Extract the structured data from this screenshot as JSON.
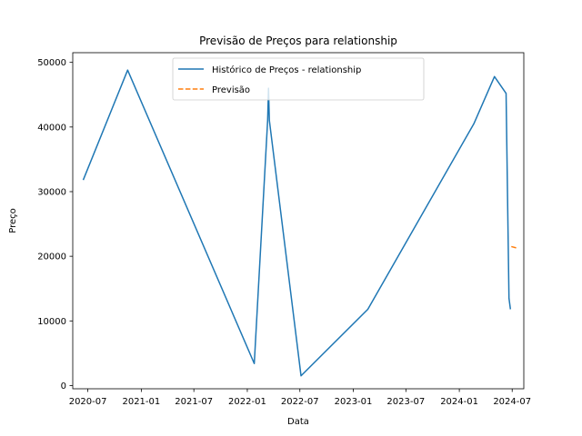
{
  "chart_data": {
    "type": "line",
    "title": "Previsão de Preços para relationship",
    "xlabel": "Data",
    "ylabel": "Preço",
    "x_axis_type": "date",
    "xlim": [
      "2020-05-10",
      "2024-08-10"
    ],
    "ylim": [
      -500,
      51500
    ],
    "x_ticks": [
      {
        "value": "2020-07-01",
        "label": "2020-07"
      },
      {
        "value": "2021-01-01",
        "label": "2021-01"
      },
      {
        "value": "2021-07-01",
        "label": "2021-07"
      },
      {
        "value": "2022-01-01",
        "label": "2022-01"
      },
      {
        "value": "2022-07-01",
        "label": "2022-07"
      },
      {
        "value": "2023-01-01",
        "label": "2023-01"
      },
      {
        "value": "2023-07-01",
        "label": "2023-07"
      },
      {
        "value": "2024-01-01",
        "label": "2024-01"
      },
      {
        "value": "2024-07-01",
        "label": "2024-07"
      }
    ],
    "y_ticks": [
      0,
      10000,
      20000,
      30000,
      40000,
      50000
    ],
    "grid": false,
    "legend_position": "top-center",
    "series": [
      {
        "name": "Histórico de Preços - relationship",
        "color": "#1f77b4",
        "style": "solid",
        "points": [
          {
            "x": "2020-06-15",
            "y": 31800
          },
          {
            "x": "2020-11-15",
            "y": 48800
          },
          {
            "x": "2022-01-25",
            "y": 3400
          },
          {
            "x": "2022-03-12",
            "y": 41000
          },
          {
            "x": "2022-03-15",
            "y": 46000
          },
          {
            "x": "2022-03-18",
            "y": 41000
          },
          {
            "x": "2022-07-05",
            "y": 1500
          },
          {
            "x": "2023-02-20",
            "y": 11800
          },
          {
            "x": "2024-02-20",
            "y": 40500
          },
          {
            "x": "2024-05-01",
            "y": 47800
          },
          {
            "x": "2024-06-10",
            "y": 45200
          },
          {
            "x": "2024-06-20",
            "y": 13500
          },
          {
            "x": "2024-06-25",
            "y": 11800
          }
        ]
      },
      {
        "name": "Previsão",
        "color": "#ff7f0e",
        "style": "dashed",
        "points": [
          {
            "x": "2024-06-28",
            "y": 21500
          },
          {
            "x": "2024-07-15",
            "y": 21300
          }
        ]
      }
    ]
  }
}
